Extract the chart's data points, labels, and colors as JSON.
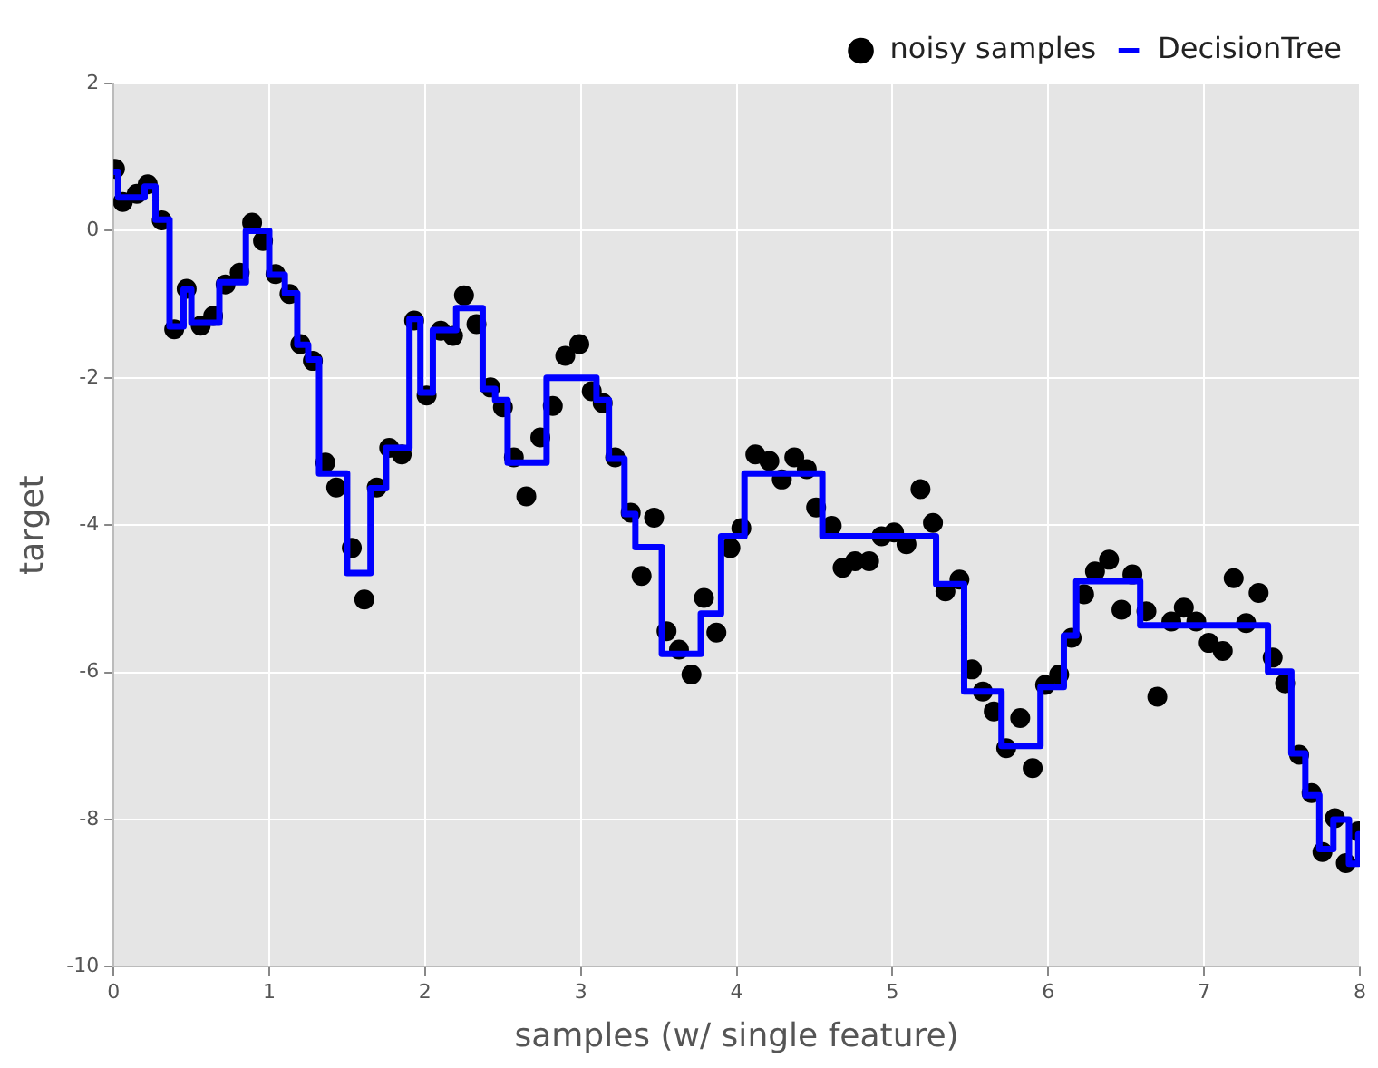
{
  "chart_data": {
    "type": "scatter",
    "xlabel": "samples (w/ single feature)",
    "ylabel": "target",
    "xlim": [
      0,
      8
    ],
    "xticks": [
      0,
      1,
      2,
      3,
      4,
      5,
      6,
      7,
      8
    ],
    "ylim": [
      -10,
      2
    ],
    "yticks": [
      -10,
      -8,
      -6,
      -4,
      -2,
      0,
      2
    ],
    "grid": true,
    "legend": "top right",
    "series": [
      {
        "name": "noisy samples",
        "type": "scatter",
        "marker": "circle",
        "color": "#000000",
        "x": [
          0.01,
          0.06,
          0.15,
          0.22,
          0.31,
          0.39,
          0.47,
          0.56,
          0.64,
          0.72,
          0.81,
          0.89,
          0.96,
          1.04,
          1.13,
          1.2,
          1.28,
          1.36,
          1.43,
          1.53,
          1.61,
          1.69,
          1.77,
          1.85,
          1.93,
          2.01,
          2.1,
          2.18,
          2.25,
          2.33,
          2.42,
          2.5,
          2.57,
          2.65,
          2.74,
          2.82,
          2.9,
          2.99,
          3.07,
          3.14,
          3.22,
          3.32,
          3.39,
          3.47,
          3.55,
          3.63,
          3.71,
          3.79,
          3.87,
          3.96,
          4.03,
          4.12,
          4.21,
          4.29,
          4.37,
          4.45,
          4.51,
          4.61,
          4.68,
          4.76,
          4.85,
          4.93,
          5.01,
          5.09,
          5.18,
          5.26,
          5.34,
          5.43,
          5.51,
          5.58,
          5.65,
          5.73,
          5.82,
          5.9,
          5.98,
          6.07,
          6.15,
          6.23,
          6.3,
          6.39,
          6.47,
          6.54,
          6.63,
          6.7,
          6.79,
          6.87,
          6.95,
          7.03,
          7.12,
          7.19,
          7.27,
          7.35,
          7.44,
          7.52,
          7.61,
          7.69,
          7.76,
          7.84,
          7.91,
          7.99
        ],
        "values": [
          0.84,
          0.39,
          0.5,
          0.63,
          0.14,
          -1.34,
          -0.79,
          -1.29,
          -1.16,
          -0.73,
          -0.57,
          0.11,
          -0.14,
          -0.59,
          -0.86,
          -1.54,
          -1.77,
          -3.15,
          -3.49,
          -4.31,
          -5.01,
          -3.49,
          -2.95,
          -3.04,
          -1.22,
          -2.24,
          -1.36,
          -1.43,
          -0.88,
          -1.27,
          -2.13,
          -2.4,
          -3.08,
          -3.61,
          -2.81,
          -2.38,
          -1.7,
          -1.54,
          -2.18,
          -2.34,
          -3.08,
          -3.83,
          -4.69,
          -3.9,
          -5.44,
          -5.69,
          -6.03,
          -4.99,
          -5.46,
          -4.31,
          -4.04,
          -3.04,
          -3.13,
          -3.38,
          -3.08,
          -3.24,
          -3.76,
          -4.01,
          -4.58,
          -4.49,
          -4.49,
          -4.15,
          -4.1,
          -4.26,
          -3.51,
          -3.97,
          -4.9,
          -4.74,
          -5.96,
          -6.26,
          -6.53,
          -7.03,
          -6.62,
          -7.3,
          -6.17,
          -6.03,
          -5.53,
          -4.94,
          -4.63,
          -4.47,
          -5.15,
          -4.67,
          -5.17,
          -6.33,
          -5.31,
          -5.12,
          -5.31,
          -5.6,
          -5.71,
          -4.72,
          -5.33,
          -4.92,
          -5.8,
          -6.15,
          -7.12,
          -7.64,
          -8.44,
          -7.98,
          -8.59,
          -8.16
        ]
      },
      {
        "name": "DecisionTree",
        "type": "step",
        "marker": "none",
        "line_style": "solid",
        "color": "#0000ff",
        "x": [
          0,
          0.03,
          0.2,
          0.27,
          0.36,
          0.45,
          0.5,
          0.68,
          0.85,
          1.0,
          1.1,
          1.18,
          1.25,
          1.32,
          1.5,
          1.65,
          1.75,
          1.9,
          1.97,
          2.05,
          2.2,
          2.37,
          2.45,
          2.53,
          2.78,
          3.1,
          3.18,
          3.28,
          3.35,
          3.52,
          3.77,
          3.9,
          4.05,
          4.55,
          5.28,
          5.46,
          5.7,
          5.95,
          6.1,
          6.18,
          6.59,
          7.41,
          7.56,
          7.65,
          7.74,
          7.83,
          7.93,
          7.99,
          8.0
        ],
        "values": [
          0.8,
          0.45,
          0.6,
          0.15,
          -1.3,
          -0.8,
          -1.25,
          -0.7,
          0,
          -0.6,
          -0.85,
          -1.55,
          -1.75,
          -3.3,
          -4.65,
          -3.5,
          -2.95,
          -1.2,
          -2.2,
          -1.35,
          -1.05,
          -2.15,
          -2.3,
          -3.15,
          -2.0,
          -2.3,
          -3.1,
          -3.85,
          -4.3,
          -5.75,
          -5.2,
          -4.15,
          -3.3,
          -4.15,
          -4.8,
          -6.26,
          -7.0,
          -6.2,
          -5.5,
          -4.76,
          -5.36,
          -5.99,
          -7.1,
          -7.67,
          -8.4,
          -8.0,
          -8.6,
          -8.2,
          -8.2
        ]
      }
    ]
  }
}
